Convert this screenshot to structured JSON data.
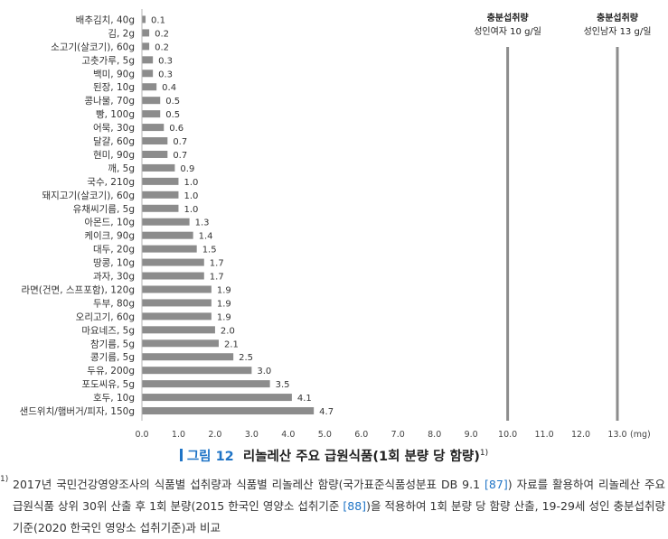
{
  "chart_data": {
    "type": "bar",
    "orientation": "horizontal",
    "categories": [
      "배추김치, 40g",
      "김, 2g",
      "소고기(살코기), 60g",
      "고춧가루, 5g",
      "백미, 90g",
      "된장, 10g",
      "콩나물, 70g",
      "빵, 100g",
      "어묵, 30g",
      "달걀, 60g",
      "현미, 90g",
      "깨, 5g",
      "국수, 210g",
      "돼지고기(살코기), 60g",
      "유채씨기름, 5g",
      "아몬드, 10g",
      "케이크, 90g",
      "대두, 20g",
      "땅콩, 10g",
      "과자, 30g",
      "라면(건면, 스프포함), 120g",
      "두부, 80g",
      "오리고기, 60g",
      "마요네즈, 5g",
      "참기름, 5g",
      "콩기름, 5g",
      "두유, 200g",
      "포도씨유, 5g",
      "호두, 10g",
      "샌드위치/햄버거/피자, 150g"
    ],
    "values": [
      0.1,
      0.2,
      0.2,
      0.3,
      0.3,
      0.4,
      0.5,
      0.5,
      0.6,
      0.7,
      0.7,
      0.9,
      1.0,
      1.0,
      1.0,
      1.3,
      1.4,
      1.5,
      1.7,
      1.7,
      1.9,
      1.9,
      1.9,
      2.0,
      2.1,
      2.5,
      3.0,
      3.5,
      4.1,
      4.7
    ],
    "value_labels": [
      "0.1",
      "0.2",
      "0.2",
      "0.3",
      "0.3",
      "0.4",
      "0.5",
      "0.5",
      "0.6",
      "0.7",
      "0.7",
      "0.9",
      "1.0",
      "1.0",
      "1.0",
      "1.3",
      "1.4",
      "1.5",
      "1.7",
      "1.7",
      "1.9",
      "1.9",
      "1.9",
      "2.0",
      "2.1",
      "2.5",
      "3.0",
      "3.5",
      "4.1",
      "4.7"
    ],
    "xlim": [
      0,
      13
    ],
    "xticks": [
      "0.0",
      "1.0",
      "2.0",
      "3.0",
      "4.0",
      "5.0",
      "6.0",
      "7.0",
      "8.0",
      "9.0",
      "10.0",
      "11.0",
      "12.0",
      "13.0"
    ],
    "xunit": "(mg)",
    "bar_color": "#8c8c8c",
    "reference_lines": [
      {
        "value": 10.0,
        "label_line1": "충분섭취량",
        "label_line2": "성인여자 10 g/일"
      },
      {
        "value": 13.0,
        "label_line1": "충분섭취량",
        "label_line2": "성인남자 13 g/일"
      }
    ],
    "grid": false
  },
  "caption": {
    "fig_no": "그림 12",
    "title": "리놀레산 주요 급원식품(1회 분량 당 함량)",
    "sup": "1)"
  },
  "footnote": {
    "mark": "1)",
    "text_1": "2017년 국민건강영양조사의 식품별 섭취량과 식품별 리놀레산 함량(국가표준식품성분표 DB 9.1 ",
    "ref_1": "[87]",
    "text_2": ") 자료를 활용하여 리놀레산 주요 급원식품 상위 30위 산출 후 1회 분량(2015 한국인 영양소 섭취기준 ",
    "ref_2": "[88]",
    "text_3": ")을 적용하여 1회 분량 당 함량 산출, 19-29세 성인 충분섭취량 기준(2020 한국인 영양소 섭취기준)과 비교"
  },
  "colors": {
    "accent": "#1f74c6",
    "bar": "#8c8c8c",
    "ref_line": "#8c8c8c"
  }
}
